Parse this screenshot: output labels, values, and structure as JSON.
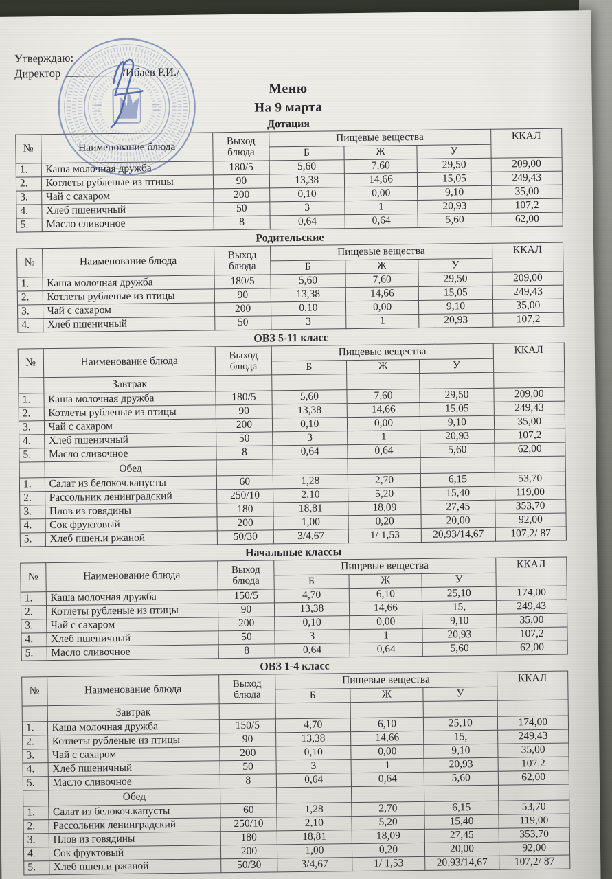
{
  "colors": {
    "stamp_blue": "#4d68ae",
    "paper": "#eceae4",
    "background": "#6e7066",
    "ink": "#2a2a2f",
    "border": "#515158"
  },
  "document": {
    "approval_line1": "Утверждаю:",
    "approval_label": "Директор",
    "approval_name": "/Ибаев Р.И./",
    "title": "Меню",
    "date_line": "На 9 марта"
  },
  "table_headers": {
    "num": "№",
    "dish": "Наименование блюда",
    "output_line1": "Выход",
    "output_line2": "блюда",
    "nutrients": "Пищевые вещества",
    "protein": "Б",
    "fat": "Ж",
    "carbs": "У",
    "kcal": "ККАЛ"
  },
  "sections": [
    {
      "title": "Дотация",
      "rows": [
        [
          "1.",
          "Каша молочная дружба",
          "180/5",
          "5,60",
          "7,60",
          "29,50",
          "209,00"
        ],
        [
          "2.",
          "Котлеты рубленые из птицы",
          "90",
          "13,38",
          "14,66",
          "15,05",
          "249,43"
        ],
        [
          "3.",
          "Чай с сахаром",
          "200",
          "0,10",
          "0,00",
          "9,10",
          "35,00"
        ],
        [
          "4.",
          "Хлеб пшеничный",
          "50",
          "3",
          "1",
          "20,93",
          "107,2"
        ],
        [
          "5.",
          "Масло сливочное",
          "8",
          "0,64",
          "0,64",
          "5,60",
          "62,00"
        ]
      ]
    },
    {
      "title": "Родительские",
      "rows": [
        [
          "1.",
          "Каша молочная дружба",
          "180/5",
          "5,60",
          "7,60",
          "29,50",
          "209,00"
        ],
        [
          "2.",
          "Котлеты рубленые из птицы",
          "90",
          "13,38",
          "14,66",
          "15,05",
          "249,43"
        ],
        [
          "3.",
          "Чай с сахаром",
          "200",
          "0,10",
          "0,00",
          "9,10",
          "35,00"
        ],
        [
          "4.",
          "Хлеб пшеничный",
          "50",
          "3",
          "1",
          "20,93",
          "107,2"
        ]
      ]
    },
    {
      "title": "ОВЗ 5-11 класс",
      "rows": [
        {
          "sub": "Завтрак"
        },
        [
          "1.",
          "Каша молочная дружба",
          "180/5",
          "5,60",
          "7,60",
          "29,50",
          "209,00"
        ],
        [
          "2.",
          "Котлеты рубленые из птицы",
          "90",
          "13,38",
          "14,66",
          "15,05",
          "249,43"
        ],
        [
          "3.",
          "Чай с сахаром",
          "200",
          "0,10",
          "0,00",
          "9,10",
          "35,00"
        ],
        [
          "4.",
          "Хлеб пшеничный",
          "50",
          "3",
          "1",
          "20,93",
          "107,2"
        ],
        [
          "5.",
          "Масло сливочное",
          "8",
          "0,64",
          "0,64",
          "5,60",
          "62,00"
        ],
        {
          "sub": "Обед"
        },
        [
          "1.",
          "Салат из белокоч.капусты",
          "60",
          "1,28",
          "2,70",
          "6,15",
          "53,70"
        ],
        [
          "2.",
          "Рассольник ленинградский",
          "250/10",
          "2,10",
          "5,20",
          "15,40",
          "119,00"
        ],
        [
          "3.",
          "Плов из говядины",
          "180",
          "18,81",
          "18,09",
          "27,45",
          "353,70"
        ],
        [
          "4.",
          "Сок фруктовый",
          "200",
          "1,00",
          "0,20",
          "20,00",
          "92,00"
        ],
        [
          "5.",
          "Хлеб пшен.и ржаной",
          "50/30",
          "3/4,67",
          "1/ 1,53",
          "20,93/14,67",
          "107,2/ 87"
        ]
      ]
    },
    {
      "title": "Начальные классы",
      "rows": [
        [
          "1.",
          "Каша молочная дружба",
          "150/5",
          "4,70",
          "6,10",
          "25,10",
          "174,00"
        ],
        [
          "2.",
          "Котлеты рубленые из птицы",
          "90",
          "13,38",
          "14,66",
          "15,",
          "249,43"
        ],
        [
          "3.",
          "Чай с сахаром",
          "200",
          "0,10",
          "0,00",
          "9,10",
          "35,00"
        ],
        [
          "4.",
          "Хлеб пшеничный",
          "50",
          "3",
          "1",
          "20,93",
          "107,2"
        ],
        [
          "5.",
          "Масло сливочное",
          "8",
          "0,64",
          "0,64",
          "5,60",
          "62,00"
        ]
      ]
    },
    {
      "title": "ОВЗ 1-4 класс",
      "rows": [
        {
          "sub": "Завтрак"
        },
        [
          "1.",
          "Каша молочная дружба",
          "150/5",
          "4,70",
          "6,10",
          "25,10",
          "174,00"
        ],
        [
          "2.",
          "Котлеты рубленые из птицы",
          "90",
          "13,38",
          "14,66",
          "15,",
          "249,43"
        ],
        [
          "3.",
          "Чай с сахаром",
          "200",
          "0,10",
          "0,00",
          "9,10",
          "35,00"
        ],
        [
          "4.",
          "Хлеб пшеничный",
          "50",
          "3",
          "1",
          "20,93",
          "107.2"
        ],
        [
          "5.",
          "Масло сливочное",
          "8",
          "0,64",
          "0,64",
          "5,60",
          "62,00"
        ],
        {
          "sub": "Обед"
        },
        [
          "1.",
          "Салат из белокоч.капусты",
          "60",
          "1,28",
          "2,70",
          "6,15",
          "53,70"
        ],
        [
          "2.",
          "Рассольник ленинградский",
          "250/10",
          "2,10",
          "5,20",
          "15,40",
          "119,00"
        ],
        [
          "3.",
          "Плов из говядины",
          "180",
          "18,81",
          "18,09",
          "27,45",
          "353,70"
        ],
        [
          "4.",
          "Сок фруктовый",
          "200",
          "1,00",
          "0,20",
          "20,00",
          "92,00"
        ],
        [
          "5.",
          "Хлеб пшен.и ржаной",
          "50/30",
          "3/4,67",
          "1/ 1,53",
          "20,93/14,67",
          "107,2/ 87"
        ]
      ]
    }
  ]
}
